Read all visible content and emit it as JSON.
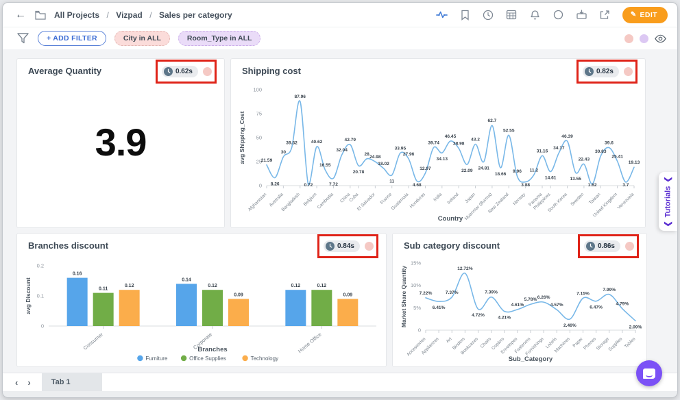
{
  "topbar": {
    "breadcrumb": [
      "All Projects",
      "Vizpad",
      "Sales per category"
    ],
    "separator": "/",
    "icons": [
      "back-icon",
      "folder-icon",
      "activity-icon",
      "bookmark-icon",
      "clock-icon",
      "table-icon",
      "bell-icon",
      "circle-icon",
      "present-icon",
      "share-icon"
    ],
    "edit_label": "EDIT"
  },
  "filterbar": {
    "add_filter_label": "+ ADD FILTER",
    "chips": [
      {
        "label": "City in ALL",
        "style": "pink"
      },
      {
        "label": "Room_Type in ALL",
        "style": "purple"
      }
    ],
    "right_icons": [
      "pink-dot",
      "purple-dot",
      "eye-icon"
    ]
  },
  "tutorials_label": "Tutorials",
  "bottombar": {
    "tab_label": "Tab 1"
  },
  "panels": {
    "kpi": {
      "load_time": "0.62s"
    },
    "shipping": {
      "load_time": "0.82s"
    },
    "branches": {
      "load_time": "0.84s"
    },
    "subcat": {
      "load_time": "0.86s"
    }
  },
  "colors": {
    "edit_orange": "#f99d1c",
    "highlight_red": "#df2318",
    "line_blue": "#79b8e8",
    "bar_blue": "#56a5ea",
    "bar_green": "#71ad47",
    "bar_orange": "#fbad4b",
    "tutorials_purple": "#5b2fd1",
    "chat_purple": "#7b51f6",
    "chip_pink": "#fbdcda",
    "chip_purple": "#eadcf8"
  },
  "chart_data": [
    {
      "id": "kpi",
      "type": "number",
      "title": "Average Quantity",
      "value": "3.9"
    },
    {
      "id": "shipping",
      "type": "line",
      "title": "Shipping cost",
      "xlabel": "Country",
      "ylabel": "avg Shipping_Cost",
      "ylim": [
        0,
        100
      ],
      "yticks": [
        0,
        25,
        50,
        75,
        100
      ],
      "percent": false,
      "grid": false,
      "line_color": "#79b8e8",
      "x_tick_labels": [
        "Afghanistan",
        "Australia",
        "Bangladesh",
        "Belgium",
        "Cambodia",
        "China",
        "Cuba",
        "El Salvador",
        "France",
        "Guatemala",
        "Honduras",
        "India",
        "Ireland",
        "Japan",
        "Myanmar (Burma)",
        "New Zealand",
        "Norway",
        "Panama",
        "Philippines",
        "South Korea",
        "Sweden",
        "Taiwan",
        "United Kingdom",
        "Venezuela"
      ],
      "values": [
        21.59,
        8.26,
        30,
        39.52,
        87.96,
        0.72,
        40.62,
        16.55,
        7.72,
        32.04,
        42.79,
        20.78,
        28,
        24.98,
        18.02,
        11,
        33.95,
        27.96,
        4.68,
        12.97,
        39.74,
        34.13,
        46.45,
        38.98,
        22.09,
        43.2,
        24.81,
        62.7,
        18.66,
        52.55,
        9.96,
        3.88,
        11.2,
        31.16,
        14.61,
        34.17,
        46.39,
        13.55,
        22.43,
        1.62,
        30.83,
        39.6,
        25.41,
        3.7,
        19.13
      ]
    },
    {
      "id": "branches",
      "type": "bar",
      "title": "Branches discount",
      "xlabel": "Branches",
      "ylabel": "avg Discount",
      "ylim": [
        0,
        0.2
      ],
      "yticks": [
        0,
        0.1,
        0.2
      ],
      "grid": false,
      "legend_position": "bottom",
      "categories": [
        "Consumer",
        "Corporate",
        "Home Office"
      ],
      "series": [
        {
          "name": "Furniture",
          "color": "#56a5ea",
          "values": [
            0.16,
            0.14,
            0.12
          ]
        },
        {
          "name": "Office Supplies",
          "color": "#71ad47",
          "values": [
            0.11,
            0.12,
            0.12
          ]
        },
        {
          "name": "Technology",
          "color": "#fbad4b",
          "values": [
            0.12,
            0.09,
            0.09
          ]
        }
      ]
    },
    {
      "id": "subcat",
      "type": "line",
      "title": "Sub category discount",
      "xlabel": "Sub_Category",
      "ylabel": "Market Share Quantity",
      "ylim": [
        0,
        15
      ],
      "yticks": [
        0,
        5,
        10,
        15
      ],
      "percent": true,
      "grid": false,
      "line_color": "#79b8e8",
      "x_tick_labels": [
        "Accessories",
        "Appliances",
        "Art",
        "Binders",
        "Bookcases",
        "Chairs",
        "Copiers",
        "Envelopes",
        "Fasteners",
        "Furnishings",
        "Labels",
        "Machines",
        "Paper",
        "Phones",
        "Storage",
        "Supplies",
        "Tables"
      ],
      "values": [
        7.22,
        6.41,
        7.37,
        12.72,
        4.72,
        7.39,
        4.21,
        4.61,
        5.78,
        6.26,
        4.57,
        2.46,
        7.15,
        6.47,
        7.99,
        4.79,
        2.09
      ]
    }
  ]
}
